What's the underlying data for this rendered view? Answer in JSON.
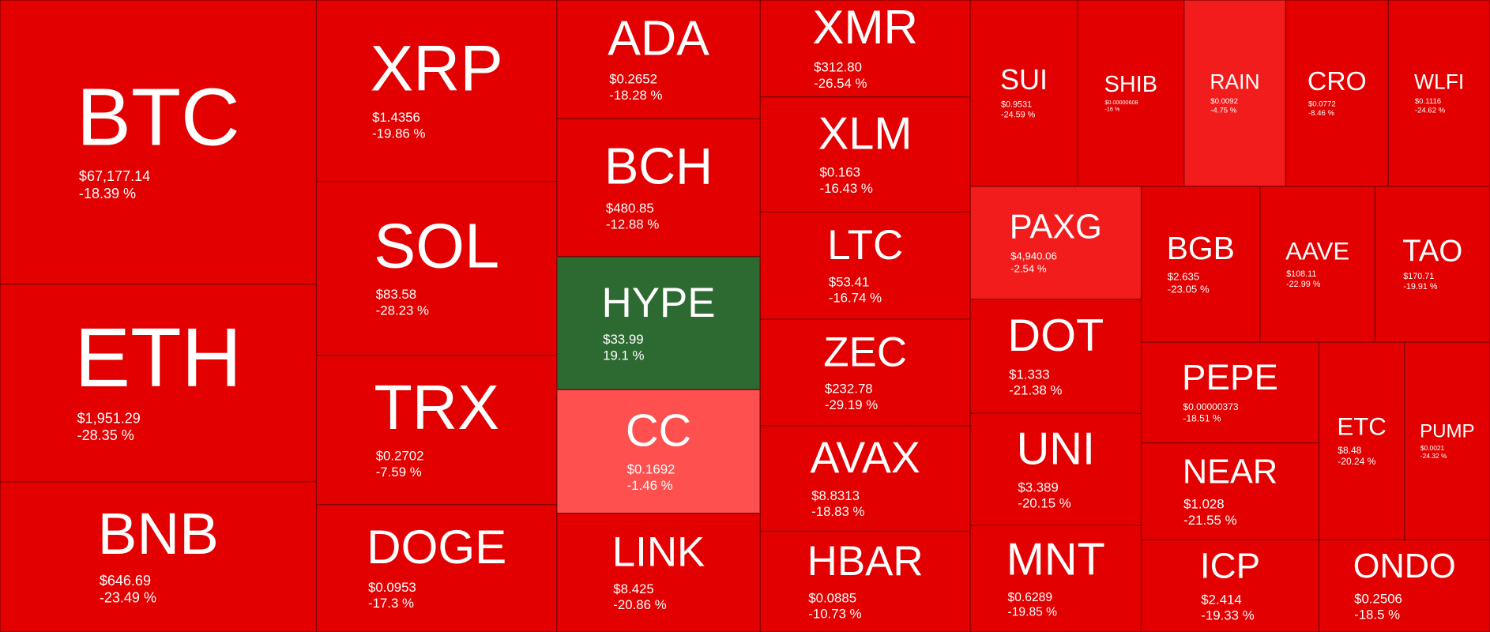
{
  "tiles": [
    {
      "symbol": "BTC",
      "price": "$67,177.14",
      "change": "-18.39 %",
      "color": "#e30000"
    },
    {
      "symbol": "ETH",
      "price": "$1,951.29",
      "change": "-28.35 %",
      "color": "#e30000"
    },
    {
      "symbol": "BNB",
      "price": "$646.69",
      "change": "-23.49 %",
      "color": "#e30000"
    },
    {
      "symbol": "XRP",
      "price": "$1.4356",
      "change": "-19.86 %",
      "color": "#e30000"
    },
    {
      "symbol": "SOL",
      "price": "$83.58",
      "change": "-28.23 %",
      "color": "#e30000"
    },
    {
      "symbol": "TRX",
      "price": "$0.2702",
      "change": "-7.59 %",
      "color": "#e30000"
    },
    {
      "symbol": "DOGE",
      "price": "$0.0953",
      "change": "-17.3 %",
      "color": "#e30000"
    },
    {
      "symbol": "ADA",
      "price": "$0.2652",
      "change": "-18.28 %",
      "color": "#e30000"
    },
    {
      "symbol": "BCH",
      "price": "$480.85",
      "change": "-12.88 %",
      "color": "#e30000"
    },
    {
      "symbol": "HYPE",
      "price": "$33.99",
      "change": "19.1 %",
      "color": "#2d6a31"
    },
    {
      "symbol": "CC",
      "price": "$0.1692",
      "change": "-1.46 %",
      "color": "#ff5050"
    },
    {
      "symbol": "LINK",
      "price": "$8.425",
      "change": "-20.86 %",
      "color": "#e30000"
    },
    {
      "symbol": "XMR",
      "price": "$312.80",
      "change": "-26.54 %",
      "color": "#e30000"
    },
    {
      "symbol": "XLM",
      "price": "$0.163",
      "change": "-16.43 %",
      "color": "#e30000"
    },
    {
      "symbol": "LTC",
      "price": "$53.41",
      "change": "-16.74 %",
      "color": "#e30000"
    },
    {
      "symbol": "ZEC",
      "price": "$232.78",
      "change": "-29.19 %",
      "color": "#e30000"
    },
    {
      "symbol": "AVAX",
      "price": "$8.8313",
      "change": "-18.83 %",
      "color": "#e30000"
    },
    {
      "symbol": "HBAR",
      "price": "$0.0885",
      "change": "-10.73 %",
      "color": "#e30000"
    },
    {
      "symbol": "SUI",
      "price": "$0.9531",
      "change": "-24.59 %",
      "color": "#e30000"
    },
    {
      "symbol": "SHIB",
      "price": "$0.00000608",
      "change": "-16 %",
      "color": "#e30000"
    },
    {
      "symbol": "RAIN",
      "price": "$0.0092",
      "change": "-4.75 %",
      "color": "#f21c1c"
    },
    {
      "symbol": "CRO",
      "price": "$0.0772",
      "change": "-8.46 %",
      "color": "#e30000"
    },
    {
      "symbol": "WLFI",
      "price": "$0.1116",
      "change": "-24.62 %",
      "color": "#e30000"
    },
    {
      "symbol": "PAXG",
      "price": "$4,940.06",
      "change": "-2.54 %",
      "color": "#f21c1c"
    },
    {
      "symbol": "DOT",
      "price": "$1.333",
      "change": "-21.38 %",
      "color": "#e30000"
    },
    {
      "symbol": "UNI",
      "price": "$3.389",
      "change": "-20.15 %",
      "color": "#e30000"
    },
    {
      "symbol": "MNT",
      "price": "$0.6289",
      "change": "-19.85 %",
      "color": "#e30000"
    },
    {
      "symbol": "BGB",
      "price": "$2.635",
      "change": "-23.05 %",
      "color": "#e30000"
    },
    {
      "symbol": "AAVE",
      "price": "$108.11",
      "change": "-22.99 %",
      "color": "#e30000"
    },
    {
      "symbol": "TAO",
      "price": "$170.71",
      "change": "-19.91 %",
      "color": "#e30000"
    },
    {
      "symbol": "PEPE",
      "price": "$0.00000373",
      "change": "-18.51 %",
      "color": "#e30000"
    },
    {
      "symbol": "NEAR",
      "price": "$1.028",
      "change": "-21.55 %",
      "color": "#e30000"
    },
    {
      "symbol": "ICP",
      "price": "$2.414",
      "change": "-19.33 %",
      "color": "#e30000"
    },
    {
      "symbol": "ETC",
      "price": "$8.48",
      "change": "-20.24 %",
      "color": "#e30000"
    },
    {
      "symbol": "PUMP",
      "price": "$0.0021",
      "change": "-24.32 %",
      "color": "#e30000"
    },
    {
      "symbol": "ONDO",
      "price": "$0.2506",
      "change": "-18.5 %",
      "color": "#e30000"
    }
  ]
}
